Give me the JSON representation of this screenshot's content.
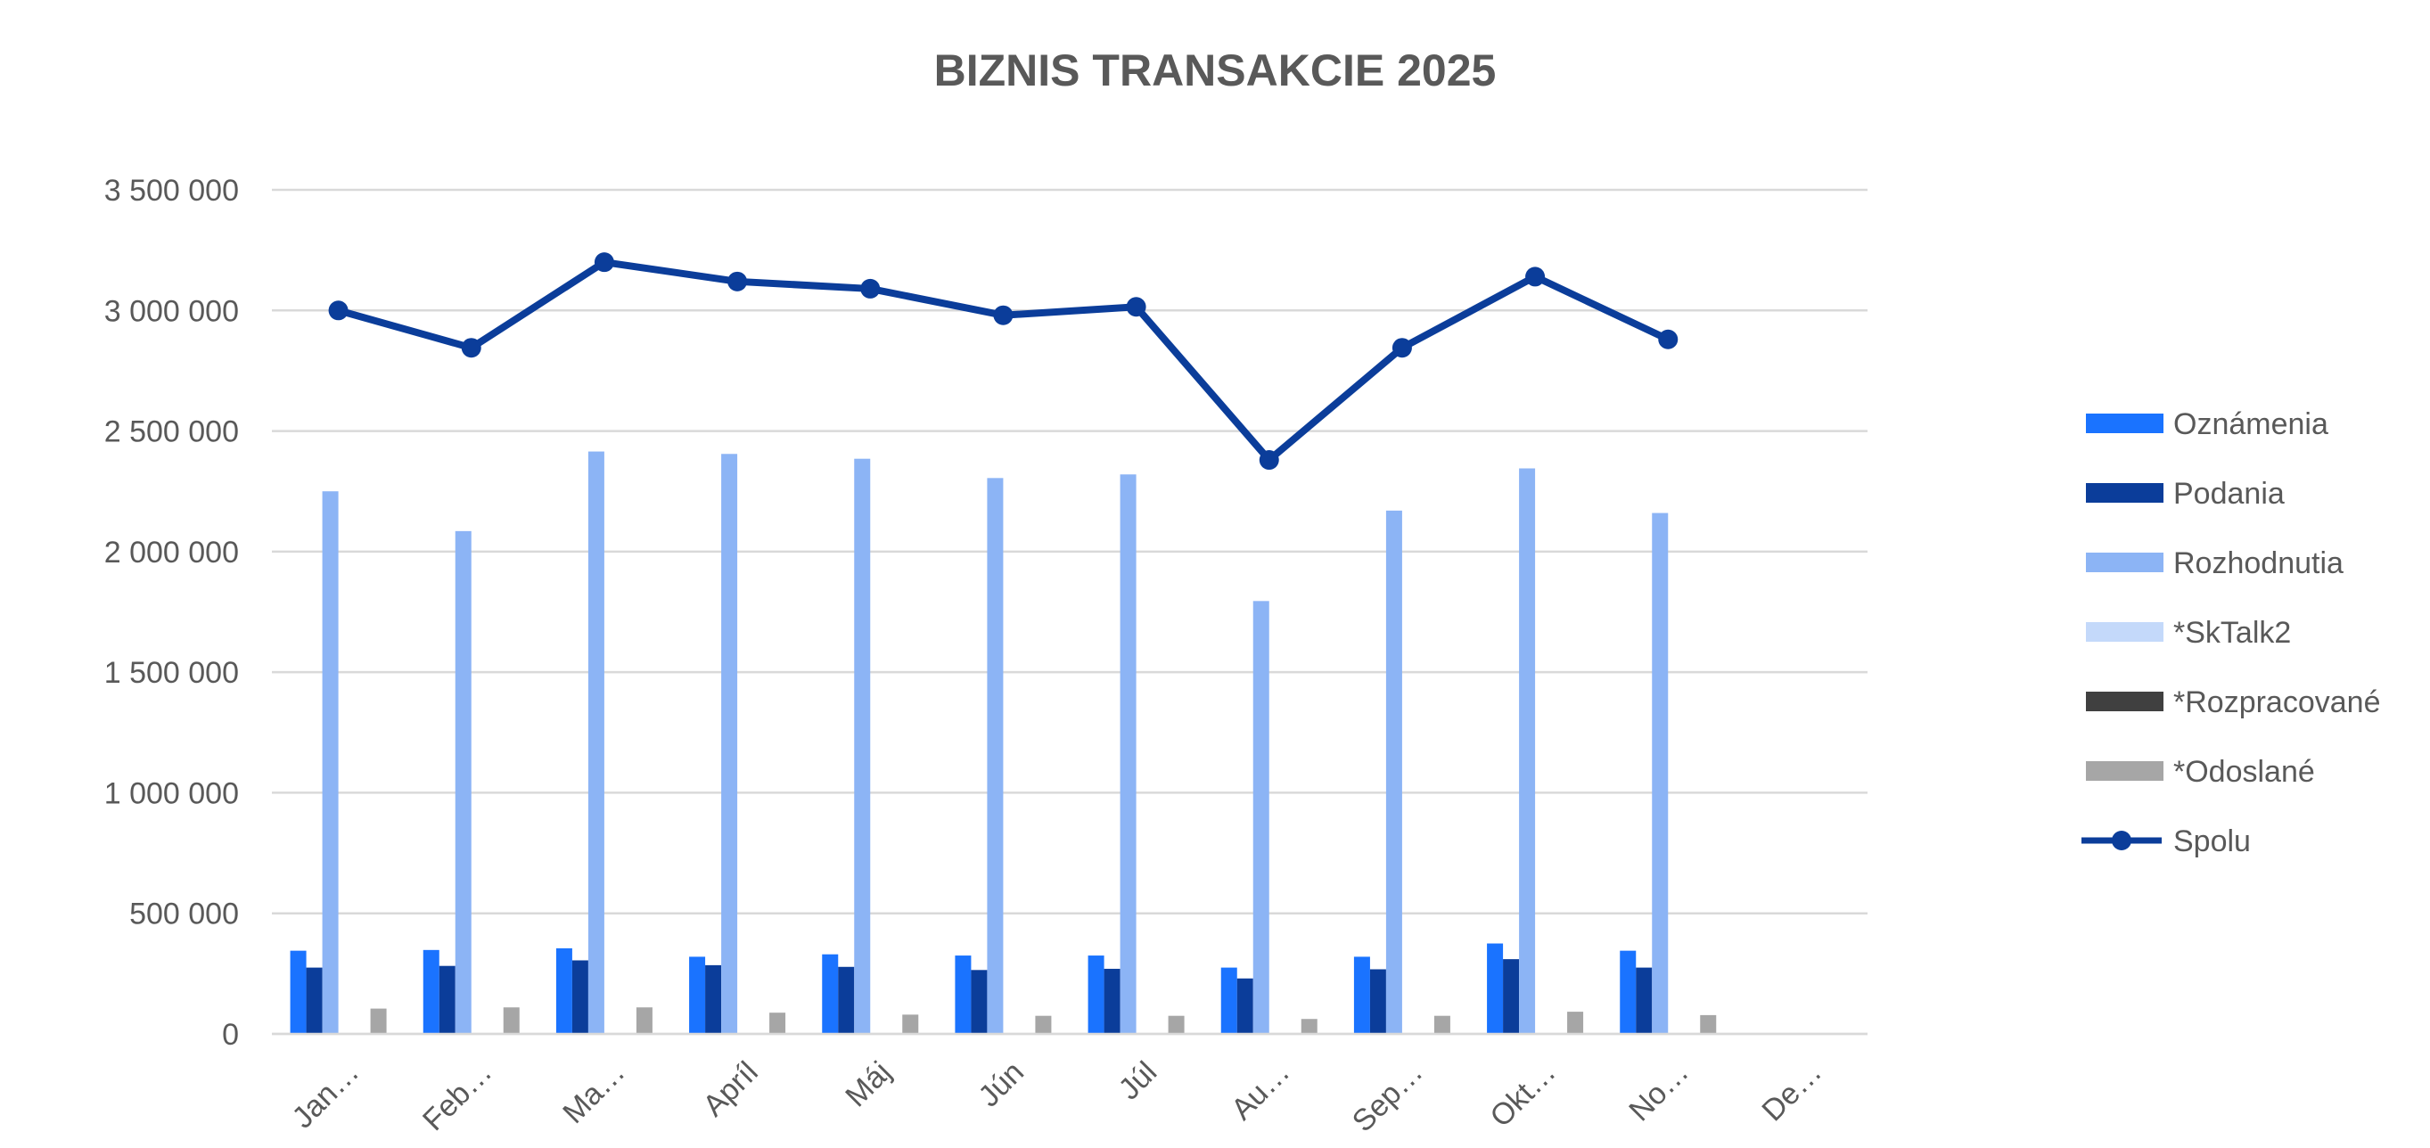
{
  "chart_data": {
    "type": "bar",
    "title": "BIZNIS TRANSAKCIE 2025",
    "xlabel": "",
    "ylabel": "",
    "ylim": [
      0,
      3500000
    ],
    "yticks": [
      0,
      500000,
      1000000,
      1500000,
      2000000,
      2500000,
      3000000,
      3500000
    ],
    "ytick_labels": [
      "0",
      "500 000",
      "1 000 000",
      "1 500 000",
      "2 000 000",
      "2 500 000",
      "3 000 000",
      "3 500 000"
    ],
    "categories": [
      "Jan…",
      "Feb…",
      "Ma…",
      "Apríl",
      "Máj",
      "Jún",
      "Júl",
      "Au…",
      "Sep…",
      "Okt…",
      "No…",
      "De…"
    ],
    "grid": true,
    "legend_position": "right",
    "series": [
      {
        "name": "Oznámenia",
        "kind": "bar",
        "color": "#1a73ff",
        "values": [
          345000,
          348000,
          355000,
          320000,
          330000,
          325000,
          325000,
          275000,
          320000,
          375000,
          345000,
          null
        ]
      },
      {
        "name": "Podania",
        "kind": "bar",
        "color": "#0b3d9a",
        "values": [
          275000,
          282000,
          305000,
          285000,
          278000,
          265000,
          270000,
          230000,
          268000,
          310000,
          275000,
          null
        ]
      },
      {
        "name": "Rozhodnutia",
        "kind": "bar",
        "color": "#8cb4f5",
        "values": [
          2250000,
          2085000,
          2415000,
          2405000,
          2385000,
          2305000,
          2320000,
          1795000,
          2170000,
          2345000,
          2160000,
          null
        ]
      },
      {
        "name": "*SkTalk2",
        "kind": "bar",
        "color": "#c4d9fa",
        "values": [
          0,
          0,
          0,
          0,
          0,
          0,
          0,
          0,
          0,
          0,
          0,
          null
        ]
      },
      {
        "name": "*Rozpracované",
        "kind": "bar",
        "color": "#404040",
        "values": [
          0,
          0,
          0,
          0,
          0,
          0,
          0,
          0,
          0,
          0,
          0,
          null
        ]
      },
      {
        "name": "*Odoslané",
        "kind": "bar",
        "color": "#a6a6a6",
        "values": [
          105000,
          110000,
          110000,
          88000,
          80000,
          75000,
          75000,
          62000,
          75000,
          92000,
          78000,
          null
        ]
      },
      {
        "name": "Spolu",
        "kind": "line",
        "color": "#0b3d9a",
        "values": [
          3000000,
          2845000,
          3200000,
          3120000,
          3090000,
          2980000,
          3015000,
          2380000,
          2845000,
          3140000,
          2880000,
          null
        ]
      }
    ]
  }
}
